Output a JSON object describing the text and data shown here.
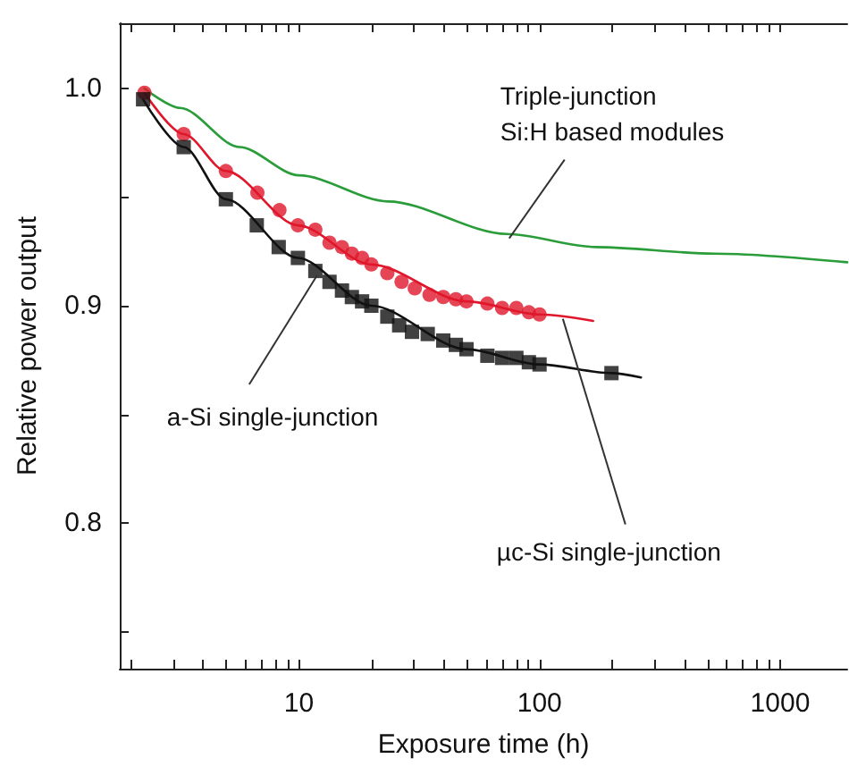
{
  "chart_data": {
    "type": "scatter",
    "xlabel": "Exposure time (h)",
    "ylabel": "Relative power output",
    "log": "x",
    "xlim": [
      1.8,
      1900
    ],
    "ylim": [
      0.733,
      1.03
    ],
    "xticks": [
      {
        "value": 2,
        "label": null
      },
      {
        "value": 3,
        "label": null
      },
      {
        "value": 4,
        "label": null
      },
      {
        "value": 5,
        "label": null
      },
      {
        "value": 6,
        "label": null
      },
      {
        "value": 7,
        "label": null
      },
      {
        "value": 8,
        "label": null
      },
      {
        "value": 9,
        "label": null
      },
      10,
      {
        "value": 20,
        "label": null
      },
      {
        "value": 30,
        "label": null
      },
      {
        "value": 40,
        "label": null
      },
      {
        "value": 50,
        "label": null
      },
      {
        "value": 60,
        "label": null
      },
      {
        "value": 70,
        "label": null
      },
      {
        "value": 80,
        "label": null
      },
      {
        "value": 90,
        "label": null
      },
      100,
      {
        "value": 200,
        "label": null
      },
      {
        "value": 300,
        "label": null
      },
      {
        "value": 400,
        "label": null
      },
      {
        "value": 500,
        "label": null
      },
      {
        "value": 600,
        "label": null
      },
      {
        "value": 700,
        "label": null
      },
      {
        "value": 800,
        "label": null
      },
      {
        "value": 900,
        "label": null
      },
      1000
    ],
    "yticks": [
      {
        "value": 0.75,
        "label": null
      },
      {
        "value": 0.8,
        "label": "0.8"
      },
      {
        "value": 0.85,
        "label": null
      },
      {
        "value": 0.9,
        "label": "0.9"
      },
      {
        "value": 0.95,
        "label": null
      },
      {
        "value": 1.0,
        "label": "1.0"
      }
    ],
    "grid": false,
    "series": [
      {
        "type": "line",
        "marker": "none",
        "color": "#2a9d3a",
        "x": [
          2.28,
          3.21,
          5.66,
          10,
          23.5,
          73,
          171,
          535,
          1900
        ],
        "values": [
          1.0,
          0.991,
          0.973,
          0.96,
          0.948,
          0.933,
          0.927,
          0.924,
          0.92
        ]
      },
      {
        "type": "line",
        "marker": "none",
        "color": "#e0162b",
        "x": [
          2.28,
          3.32,
          4.97,
          9.9,
          20,
          49.7,
          100,
          167
        ],
        "values": [
          0.998,
          0.979,
          0.962,
          0.937,
          0.919,
          0.902,
          0.896,
          0.893
        ]
      },
      {
        "type": "scatter",
        "marker": "circle",
        "color": "#e0162b",
        "x": [
          2.28,
          3.32,
          4.97,
          6.72,
          8.3,
          9.9,
          11.7,
          13.4,
          15.1,
          16.6,
          18.3,
          20,
          23.3,
          26.7,
          30.3,
          34.9,
          39.8,
          44.9,
          49.7,
          60.7,
          69.9,
          80.1,
          90.3,
          100
        ],
        "values": [
          0.998,
          0.979,
          0.962,
          0.952,
          0.944,
          0.937,
          0.935,
          0.929,
          0.927,
          0.924,
          0.922,
          0.919,
          0.915,
          0.911,
          0.908,
          0.905,
          0.904,
          0.903,
          0.902,
          0.901,
          0.899,
          0.899,
          0.897,
          0.896
        ]
      },
      {
        "type": "line",
        "marker": "none",
        "color": "#111111",
        "x": [
          2.25,
          3.32,
          4.97,
          9.9,
          20,
          49.7,
          100,
          199,
          264
        ],
        "values": [
          0.995,
          0.973,
          0.949,
          0.922,
          0.9,
          0.88,
          0.873,
          0.869,
          0.867
        ]
      },
      {
        "type": "scatter",
        "marker": "square",
        "color": "#111111",
        "x": [
          2.25,
          3.32,
          4.97,
          6.68,
          8.24,
          9.9,
          11.7,
          13.4,
          15.1,
          16.6,
          18.3,
          20,
          23.3,
          26.1,
          29.5,
          34.3,
          39.8,
          44.9,
          49.7,
          60.7,
          69.9,
          80.1,
          90.3,
          100,
          199
        ],
        "values": [
          0.995,
          0.973,
          0.949,
          0.937,
          0.927,
          0.922,
          0.916,
          0.911,
          0.907,
          0.904,
          0.902,
          0.9,
          0.895,
          0.891,
          0.888,
          0.887,
          0.884,
          0.882,
          0.88,
          0.877,
          0.876,
          0.876,
          0.874,
          0.873,
          0.869
        ]
      }
    ],
    "annotations": [
      {
        "text": "Triple-junction\nSi:H based modules",
        "x": 74.8,
        "y": 0.931
      },
      {
        "text": "a-Si single-junction",
        "x": 11.9,
        "y": 0.914
      },
      {
        "text": "µc-Si single-junction",
        "x": 125,
        "y": 0.894
      }
    ]
  }
}
